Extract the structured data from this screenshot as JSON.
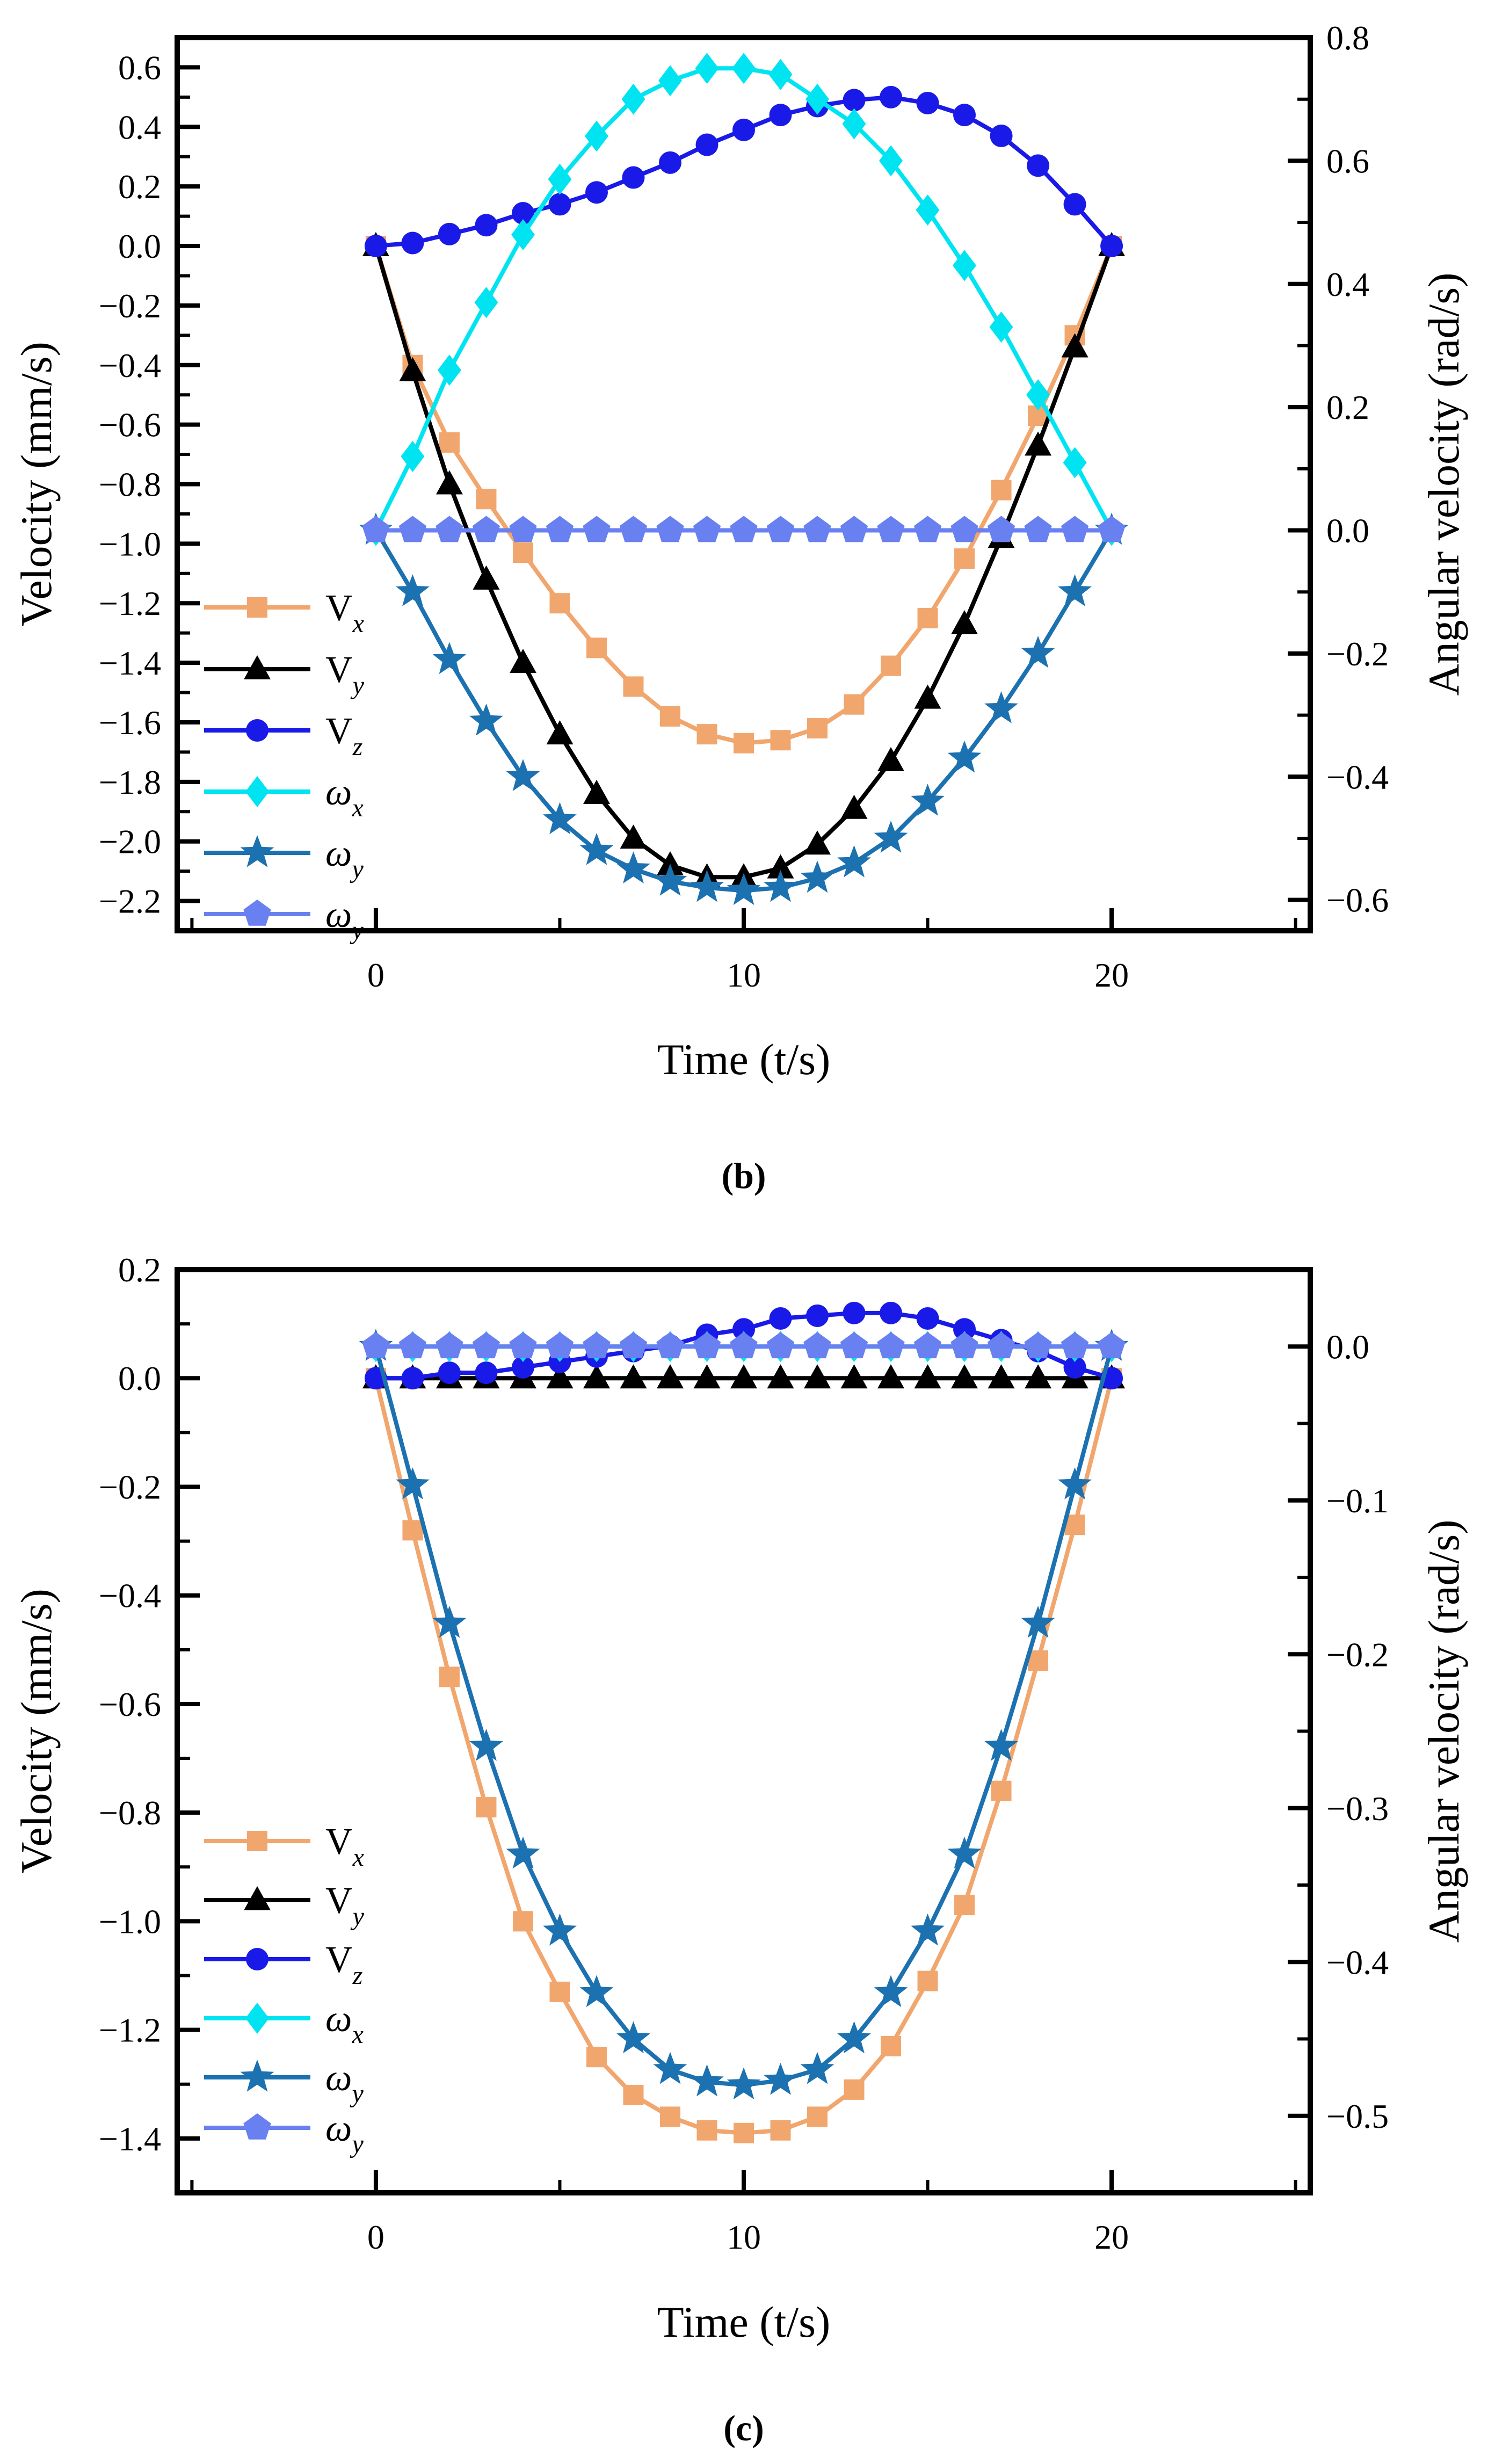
{
  "page": {
    "background": "#ffffff"
  },
  "chart_data": [
    {
      "id": "b",
      "type": "line",
      "caption": "(b)",
      "xlabel": "Time (t/s)",
      "x_axis": {
        "range": [
          -5.4,
          25.4
        ],
        "tick_labels": [
          "0",
          "10",
          "20"
        ],
        "tick_values": [
          0,
          10,
          20
        ],
        "minor_values": [
          -5,
          5,
          15,
          25
        ]
      },
      "left_axis": {
        "title": "Velocity (mm/s)",
        "range": [
          0.7,
          -2.3
        ],
        "tick_labels": [
          "0.6",
          "0.4",
          "0.2",
          "0.0",
          "−0.2",
          "−0.4",
          "−0.6",
          "−0.8",
          "−1.0",
          "−1.2",
          "−1.4",
          "−1.6",
          "−1.8",
          "−2.0",
          "−2.2"
        ],
        "tick_values": [
          0.6,
          0.4,
          0.2,
          0.0,
          -0.2,
          -0.4,
          -0.6,
          -0.8,
          -1.0,
          -1.2,
          -1.4,
          -1.6,
          -1.8,
          -2.0,
          -2.2
        ],
        "minor_values": [
          0.5,
          0.3,
          0.1,
          -0.1,
          -0.3,
          -0.5,
          -0.7,
          -0.9,
          -1.1,
          -1.3,
          -1.5,
          -1.7,
          -1.9,
          -2.1
        ]
      },
      "right_axis": {
        "title": "Angular velocity (rad/s)",
        "range": [
          0.8,
          -0.65
        ],
        "tick_labels": [
          "0.8",
          "0.6",
          "0.4",
          "0.2",
          "0.0",
          "−0.2",
          "−0.4",
          "−0.6"
        ],
        "tick_values": [
          0.8,
          0.6,
          0.4,
          0.2,
          0.0,
          -0.2,
          -0.4,
          -0.6
        ],
        "minor_values": [
          0.7,
          0.5,
          0.3,
          0.1,
          -0.1,
          -0.3,
          -0.5
        ]
      },
      "x": [
        0,
        1,
        2,
        3,
        4,
        5,
        6,
        7,
        8,
        9,
        10,
        11,
        12,
        13,
        14,
        15,
        16,
        17,
        18,
        19,
        20
      ],
      "series": [
        {
          "name": "vx",
          "label": {
            "main": "V",
            "sub": "x"
          },
          "axis": "left",
          "color": "#F1A66E",
          "marker": "square",
          "values": [
            0,
            -0.4,
            -0.66,
            -0.85,
            -1.03,
            -1.2,
            -1.35,
            -1.48,
            -1.58,
            -1.64,
            -1.67,
            -1.66,
            -1.62,
            -1.54,
            -1.41,
            -1.25,
            -1.05,
            -0.82,
            -0.57,
            -0.3,
            0
          ]
        },
        {
          "name": "vy",
          "label": {
            "main": "V",
            "sub": "y"
          },
          "axis": "left",
          "color": "#000000",
          "marker": "triangle",
          "values": [
            0,
            -0.42,
            -0.8,
            -1.12,
            -1.4,
            -1.64,
            -1.84,
            -1.99,
            -2.08,
            -2.12,
            -2.12,
            -2.09,
            -2.01,
            -1.89,
            -1.73,
            -1.52,
            -1.27,
            -0.98,
            -0.67,
            -0.34,
            0
          ]
        },
        {
          "name": "vz",
          "label": {
            "main": "V",
            "sub": "z"
          },
          "axis": "left",
          "color": "#1A1AE8",
          "marker": "circle",
          "values": [
            0,
            0.01,
            0.04,
            0.07,
            0.11,
            0.14,
            0.18,
            0.23,
            0.28,
            0.34,
            0.39,
            0.44,
            0.47,
            0.49,
            0.5,
            0.48,
            0.44,
            0.37,
            0.27,
            0.14,
            0
          ]
        },
        {
          "name": "wx",
          "label": {
            "main": "ω",
            "sub": "x"
          },
          "axis": "right",
          "color": "#00E4F2",
          "marker": "diamond",
          "values": [
            0,
            0.12,
            0.26,
            0.37,
            0.48,
            0.57,
            0.64,
            0.7,
            0.73,
            0.75,
            0.75,
            0.74,
            0.7,
            0.66,
            0.6,
            0.52,
            0.43,
            0.33,
            0.22,
            0.11,
            0
          ]
        },
        {
          "name": "wy",
          "label": {
            "main": "ω",
            "sub": "y"
          },
          "axis": "right",
          "color": "#1C71B0",
          "marker": "star",
          "values": [
            0,
            -0.1,
            -0.21,
            -0.31,
            -0.4,
            -0.47,
            -0.52,
            -0.55,
            -0.57,
            -0.58,
            -0.585,
            -0.58,
            -0.565,
            -0.54,
            -0.5,
            -0.44,
            -0.37,
            -0.29,
            -0.2,
            -0.1,
            0
          ]
        },
        {
          "name": "wz",
          "label": {
            "main": "ω",
            "sub": "y"
          },
          "axis": "right",
          "color": "#6980F0",
          "marker": "pentagon",
          "values": [
            0,
            0,
            0,
            0,
            0,
            0,
            0,
            0,
            0,
            0,
            0,
            0,
            0,
            0,
            0,
            0,
            0,
            0,
            0,
            0,
            0
          ]
        }
      ]
    },
    {
      "id": "c",
      "type": "line",
      "caption": "(c)",
      "xlabel": "Time (t/s)",
      "x_axis": {
        "range": [
          -5.4,
          25.4
        ],
        "tick_labels": [
          "0",
          "10",
          "20"
        ],
        "tick_values": [
          0,
          10,
          20
        ],
        "minor_values": [
          -5,
          5,
          15,
          25
        ]
      },
      "left_axis": {
        "title": "Velocity (mm/s)",
        "range": [
          0.2,
          -1.5
        ],
        "tick_labels": [
          "0.2",
          "0.0",
          "−0.2",
          "−0.4",
          "−0.6",
          "−0.8",
          "−1.0",
          "−1.2",
          "−1.4"
        ],
        "tick_values": [
          0.2,
          0.0,
          -0.2,
          -0.4,
          -0.6,
          -0.8,
          -1.0,
          -1.2,
          -1.4
        ],
        "minor_values": [
          0.1,
          -0.1,
          -0.3,
          -0.5,
          -0.7,
          -0.9,
          -1.1,
          -1.3
        ]
      },
      "right_axis": {
        "title": "Angular velocity (rad/s)",
        "range": [
          0.05,
          -0.55
        ],
        "tick_labels": [
          "0.0",
          "−0.1",
          "−0.2",
          "−0.3",
          "−0.4",
          "−0.5"
        ],
        "tick_values": [
          0.0,
          -0.1,
          -0.2,
          -0.3,
          -0.4,
          -0.5
        ],
        "minor_values": [
          -0.05,
          -0.15,
          -0.25,
          -0.35,
          -0.45
        ]
      },
      "x": [
        0,
        1,
        2,
        3,
        4,
        5,
        6,
        7,
        8,
        9,
        10,
        11,
        12,
        13,
        14,
        15,
        16,
        17,
        18,
        19,
        20
      ],
      "series": [
        {
          "name": "vx",
          "label": {
            "main": "V",
            "sub": "x"
          },
          "axis": "left",
          "color": "#F1A66E",
          "marker": "square",
          "values": [
            0,
            -0.28,
            -0.55,
            -0.79,
            -1.0,
            -1.13,
            -1.25,
            -1.32,
            -1.36,
            -1.385,
            -1.39,
            -1.385,
            -1.36,
            -1.31,
            -1.23,
            -1.11,
            -0.97,
            -0.76,
            -0.52,
            -0.27,
            0
          ]
        },
        {
          "name": "vy",
          "label": {
            "main": "V",
            "sub": "y"
          },
          "axis": "left",
          "color": "#000000",
          "marker": "triangle",
          "values": [
            0,
            0,
            0,
            0,
            0,
            0,
            0,
            0,
            0,
            0,
            0,
            0,
            0,
            0,
            0,
            0,
            0,
            0,
            0,
            0,
            0
          ]
        },
        {
          "name": "vz",
          "label": {
            "main": "V",
            "sub": "z"
          },
          "axis": "left",
          "color": "#1A1AE8",
          "marker": "circle",
          "values": [
            0,
            0,
            0.01,
            0.01,
            0.02,
            0.03,
            0.04,
            0.05,
            0.06,
            0.08,
            0.09,
            0.11,
            0.115,
            0.12,
            0.12,
            0.11,
            0.09,
            0.07,
            0.05,
            0.02,
            0
          ]
        },
        {
          "name": "wx",
          "label": {
            "main": "ω",
            "sub": "x"
          },
          "axis": "right",
          "color": "#00E4F2",
          "marker": "diamond",
          "values": [
            0,
            0,
            0,
            0,
            0,
            0,
            0,
            0,
            0,
            0,
            0,
            0,
            0,
            0,
            0,
            0,
            0,
            0,
            0,
            0,
            0
          ]
        },
        {
          "name": "wy",
          "label": {
            "main": "ω",
            "sub": "y"
          },
          "axis": "right",
          "color": "#1C71B0",
          "marker": "star",
          "values": [
            0,
            -0.09,
            -0.18,
            -0.26,
            -0.33,
            -0.38,
            -0.42,
            -0.45,
            -0.47,
            -0.478,
            -0.48,
            -0.477,
            -0.47,
            -0.45,
            -0.42,
            -0.38,
            -0.33,
            -0.26,
            -0.18,
            -0.09,
            0
          ]
        },
        {
          "name": "wz",
          "label": {
            "main": "ω",
            "sub": "y"
          },
          "axis": "right",
          "color": "#6980F0",
          "marker": "pentagon",
          "values": [
            0,
            0,
            0,
            0,
            0,
            0,
            0,
            0,
            0,
            0,
            0,
            0,
            0,
            0,
            0,
            0,
            0,
            0,
            0,
            0,
            0
          ]
        }
      ]
    }
  ]
}
